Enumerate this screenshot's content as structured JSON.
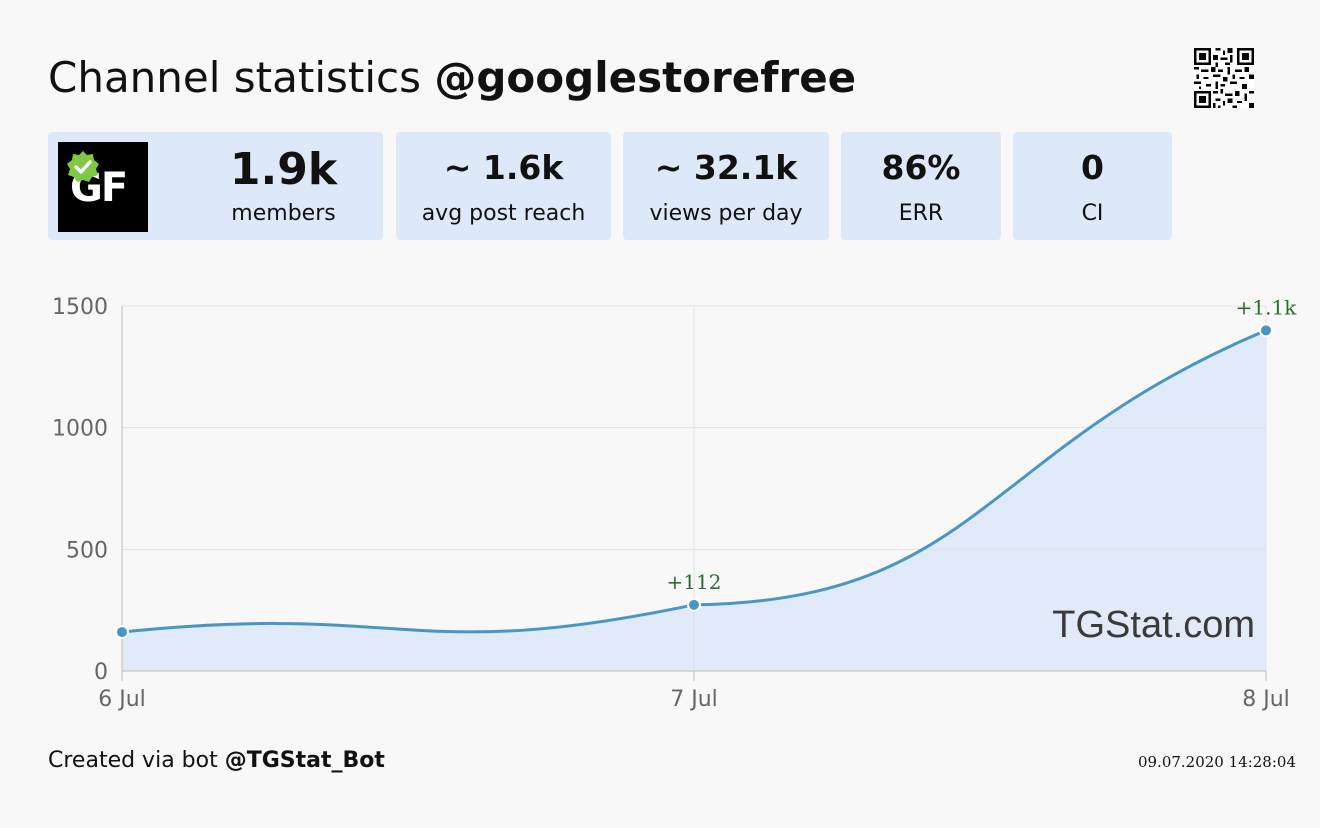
{
  "header": {
    "title_prefix": "Channel statistics",
    "channel": "@googlestorefree"
  },
  "avatar": {
    "text": "GF",
    "badge_color": "#7ec843"
  },
  "stats": {
    "members": {
      "value": "1.9k",
      "label": "members"
    },
    "reach": {
      "value": "~ 1.6k",
      "label": "avg post reach"
    },
    "views": {
      "value": "~ 32.1k",
      "label": "views per day"
    },
    "err": {
      "value": "86%",
      "label": "ERR"
    },
    "ci": {
      "value": "0",
      "label": "CI"
    }
  },
  "chart_data": {
    "type": "area",
    "x": [
      "6 Jul",
      "7 Jul",
      "8 Jul"
    ],
    "series": [
      {
        "values": [
          160,
          272,
          1400
        ]
      }
    ],
    "point_labels": [
      "",
      "+112",
      "+1.1k"
    ],
    "ylim": [
      0,
      1500
    ],
    "yticks": [
      0,
      500,
      1000,
      1500
    ],
    "grid": true,
    "watermark": "TGStat.com",
    "colors": {
      "line": "#4a96c2",
      "fill": "#dde8f8",
      "label": "#2e6b2e"
    }
  },
  "footer": {
    "created_prefix": "Created via bot",
    "bot": "@TGStat_Bot",
    "timestamp": "09.07.2020 14:28:04"
  }
}
